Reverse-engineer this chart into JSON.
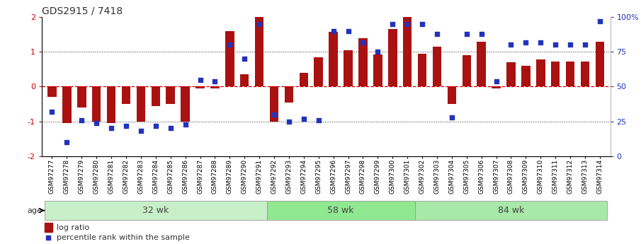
{
  "title": "GDS2915 / 7418",
  "samples": [
    "GSM97277",
    "GSM97278",
    "GSM97279",
    "GSM97280",
    "GSM97281",
    "GSM97282",
    "GSM97283",
    "GSM97284",
    "GSM97285",
    "GSM97286",
    "GSM97287",
    "GSM97288",
    "GSM97289",
    "GSM97290",
    "GSM97291",
    "GSM97292",
    "GSM97293",
    "GSM97294",
    "GSM97295",
    "GSM97296",
    "GSM97297",
    "GSM97298",
    "GSM97299",
    "GSM97300",
    "GSM97301",
    "GSM97302",
    "GSM97303",
    "GSM97304",
    "GSM97305",
    "GSM97306",
    "GSM97307",
    "GSM97308",
    "GSM97309",
    "GSM97310",
    "GSM97311",
    "GSM97312",
    "GSM97313",
    "GSM97314"
  ],
  "log_ratio": [
    -0.3,
    -1.05,
    -0.6,
    -1.0,
    -1.05,
    -0.5,
    -1.0,
    -0.55,
    -0.5,
    -1.0,
    -0.05,
    -0.05,
    1.6,
    0.35,
    2.0,
    -1.0,
    -0.45,
    0.4,
    0.85,
    1.58,
    1.05,
    1.4,
    0.92,
    1.65,
    2.0,
    0.95,
    1.15,
    -0.5,
    0.9,
    1.3,
    -0.05,
    0.7,
    0.6,
    0.78,
    0.72,
    0.72,
    0.72,
    1.3
  ],
  "percentile": [
    32,
    10,
    26,
    24,
    20,
    22,
    18,
    22,
    20,
    23,
    55,
    54,
    80,
    70,
    95,
    30,
    25,
    27,
    26,
    90,
    90,
    82,
    75,
    95,
    95,
    95,
    88,
    28,
    88,
    88,
    54,
    80,
    82,
    82,
    80,
    80,
    80,
    97
  ],
  "groups": [
    {
      "label": "32 wk",
      "start": 0,
      "end": 15,
      "color": "#c8f0c8"
    },
    {
      "label": "58 wk",
      "start": 15,
      "end": 25,
      "color": "#90e890"
    },
    {
      "label": "84 wk",
      "start": 25,
      "end": 38,
      "color": "#a8e8a8"
    }
  ],
  "bar_color": "#aa1111",
  "dot_color": "#2233bb",
  "ylim": [
    -2,
    2
  ],
  "y2lim": [
    0,
    100
  ],
  "bg_color": "#ffffff",
  "title_fontsize": 10,
  "tick_fontsize": 6.5
}
